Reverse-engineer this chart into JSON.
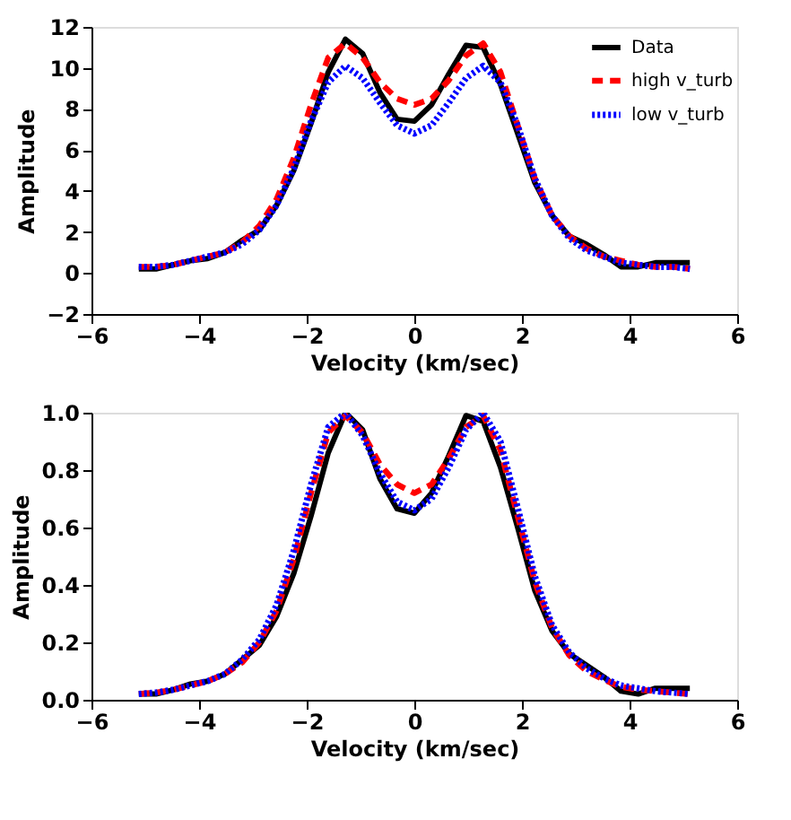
{
  "chart_data": [
    {
      "type": "line",
      "xlabel": "Velocity (km/sec)",
      "ylabel": "Amplitude",
      "xlim": [
        -6,
        6
      ],
      "xticks": [
        -6,
        -4,
        -2,
        0,
        2,
        4,
        6
      ],
      "ylim": [
        -2,
        12
      ],
      "yticks": [
        -2,
        0,
        2,
        4,
        6,
        8,
        10,
        12
      ],
      "grid": false,
      "legend": "top right",
      "marker": "none",
      "x": [
        -5.12,
        -4.8,
        -4.48,
        -4.16,
        -3.84,
        -3.52,
        -3.2,
        -2.88,
        -2.56,
        -2.24,
        -1.92,
        -1.6,
        -1.28,
        -0.96,
        -0.64,
        -0.32,
        0,
        0.32,
        0.64,
        0.96,
        1.28,
        1.6,
        1.92,
        2.24,
        2.56,
        2.88,
        3.2,
        3.52,
        3.84,
        4.16,
        4.48,
        4.8,
        5.12
      ],
      "series": [
        {
          "name": "Data",
          "color": "#000000",
          "line_style": "solid",
          "values": [
            0.2,
            0.2,
            0.4,
            0.6,
            0.7,
            1.0,
            1.6,
            2.1,
            3.3,
            5.0,
            7.3,
            9.8,
            11.4,
            10.7,
            8.8,
            7.5,
            7.4,
            8.2,
            9.7,
            11.1,
            11.0,
            9.2,
            6.8,
            4.4,
            2.8,
            1.8,
            1.4,
            0.9,
            0.3,
            0.3,
            0.5,
            0.5,
            0.5
          ]
        },
        {
          "name": "high v_turb",
          "color": "#ff0000",
          "line_style": "dashed",
          "values": [
            0.3,
            0.3,
            0.4,
            0.6,
            0.8,
            1.0,
            1.5,
            2.3,
            3.6,
            5.6,
            8.2,
            10.5,
            11.2,
            10.5,
            9.3,
            8.5,
            8.2,
            8.5,
            9.4,
            10.6,
            11.2,
            9.8,
            7.2,
            4.6,
            2.8,
            1.8,
            1.2,
            0.8,
            0.6,
            0.4,
            0.3,
            0.3,
            0.2
          ]
        },
        {
          "name": "low v_turb",
          "color": "#0000ff",
          "line_style": "dotted",
          "values": [
            0.3,
            0.3,
            0.4,
            0.6,
            0.8,
            1.0,
            1.4,
            2.1,
            3.3,
            5.1,
            7.4,
            9.3,
            10.1,
            9.5,
            8.3,
            7.2,
            6.8,
            7.2,
            8.3,
            9.5,
            10.1,
            9.3,
            7.2,
            4.6,
            2.8,
            1.7,
            1.1,
            0.8,
            0.5,
            0.4,
            0.3,
            0.3,
            0.2
          ]
        }
      ]
    },
    {
      "type": "line",
      "xlabel": "Velocity (km/sec)",
      "ylabel": "Amplitude",
      "xlim": [
        -6,
        6
      ],
      "xticks": [
        -6,
        -4,
        -2,
        0,
        2,
        4,
        6
      ],
      "ylim": [
        0,
        1
      ],
      "yticks": [
        {
          "value": 0,
          "label": "0.0"
        },
        0.2,
        0.4,
        0.6,
        0.8,
        {
          "value": 1,
          "label": "1.0"
        }
      ],
      "grid": false,
      "legend": false,
      "marker": "none",
      "x": [
        -5.12,
        -4.8,
        -4.48,
        -4.16,
        -3.84,
        -3.52,
        -3.2,
        -2.88,
        -2.56,
        -2.24,
        -1.92,
        -1.6,
        -1.28,
        -0.96,
        -0.64,
        -0.32,
        0,
        0.32,
        0.64,
        0.96,
        1.28,
        1.6,
        1.92,
        2.24,
        2.56,
        2.88,
        3.2,
        3.52,
        3.84,
        4.16,
        4.48,
        4.8,
        5.12
      ],
      "series": [
        {
          "color": "#000000",
          "line_style": "solid",
          "values": [
            0.02,
            0.02,
            0.035,
            0.055,
            0.065,
            0.09,
            0.14,
            0.19,
            0.29,
            0.44,
            0.64,
            0.86,
            1.0,
            0.94,
            0.77,
            0.665,
            0.65,
            0.72,
            0.85,
            0.99,
            0.97,
            0.81,
            0.6,
            0.38,
            0.24,
            0.16,
            0.12,
            0.08,
            0.03,
            0.02,
            0.04,
            0.04,
            0.04
          ]
        },
        {
          "color": "#ff0000",
          "line_style": "dashed",
          "values": [
            0.02,
            0.025,
            0.035,
            0.05,
            0.065,
            0.09,
            0.13,
            0.2,
            0.31,
            0.49,
            0.72,
            0.93,
            0.99,
            0.93,
            0.82,
            0.75,
            0.72,
            0.75,
            0.84,
            0.95,
            0.99,
            0.87,
            0.64,
            0.41,
            0.25,
            0.155,
            0.1,
            0.07,
            0.045,
            0.035,
            0.03,
            0.025,
            0.02
          ]
        },
        {
          "color": "#0000ff",
          "line_style": "dotted",
          "values": [
            0.02,
            0.025,
            0.035,
            0.05,
            0.065,
            0.09,
            0.14,
            0.21,
            0.33,
            0.52,
            0.75,
            0.95,
            1.0,
            0.92,
            0.79,
            0.69,
            0.66,
            0.7,
            0.81,
            0.94,
            1.0,
            0.9,
            0.67,
            0.43,
            0.26,
            0.165,
            0.11,
            0.075,
            0.05,
            0.04,
            0.03,
            0.025,
            0.02
          ]
        }
      ]
    }
  ]
}
